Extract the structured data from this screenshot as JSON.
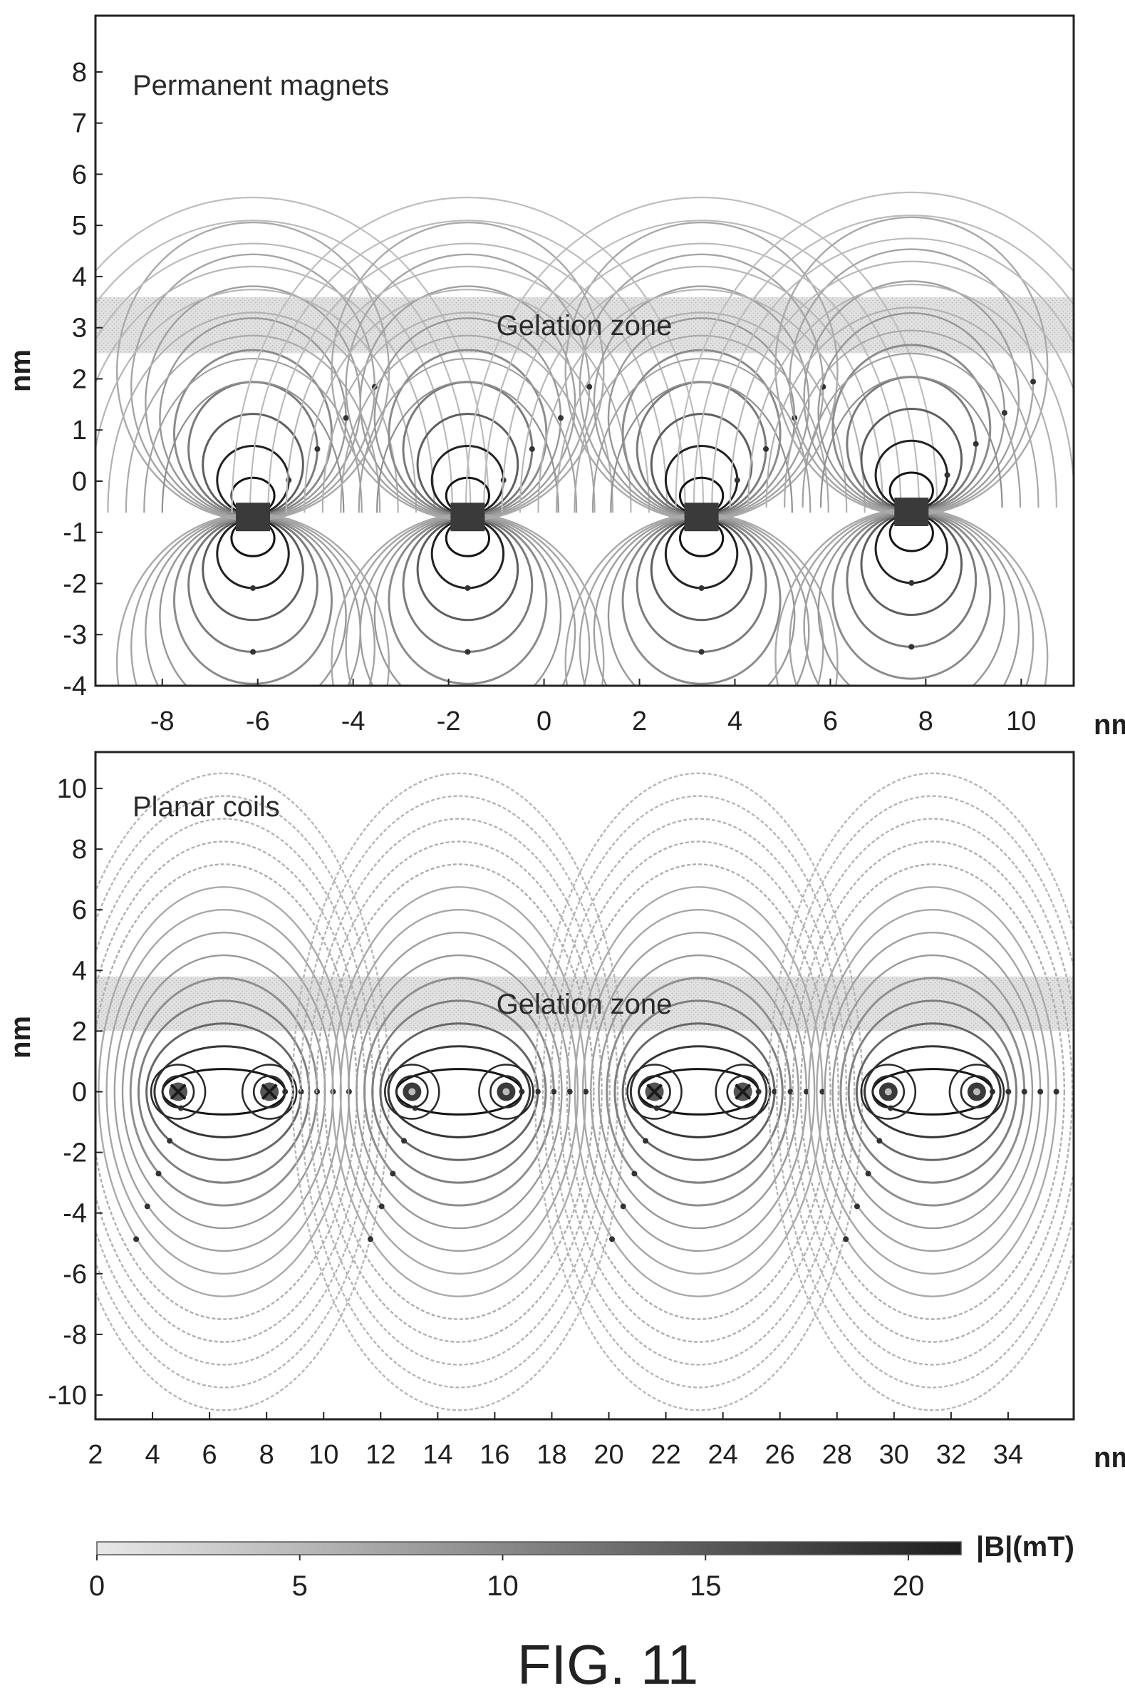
{
  "caption": "FIG. 11",
  "colorbar": {
    "label": "|B|(mT)",
    "ticks": [
      "0",
      "5",
      "10",
      "15",
      "20"
    ],
    "range": [
      0,
      21.3
    ],
    "gradient": [
      "#e8e8e8",
      "#1e1e1e"
    ]
  },
  "panels": [
    {
      "id": "top",
      "title": "Permanent magnets",
      "zone_label": "Gelation zone",
      "x_unit": "nm",
      "y_unit": "nm",
      "x_ticks": [
        "-8",
        "-6",
        "-4",
        "-2",
        "0",
        "2",
        "4",
        "6",
        "8",
        "10"
      ],
      "y_ticks": [
        "8",
        "7",
        "6",
        "5",
        "4",
        "3",
        "2",
        "1",
        "0",
        "-1",
        "-2",
        "-3",
        "-4"
      ],
      "xlim": [
        -9.4,
        11.1
      ],
      "ylim": [
        -4,
        9.1
      ],
      "zone_y": [
        2.5,
        3.6
      ],
      "sources": [
        {
          "x": -6.1,
          "y": -0.7,
          "kind": "magnet"
        },
        {
          "x": -1.6,
          "y": -0.7,
          "kind": "magnet"
        },
        {
          "x": 3.3,
          "y": -0.7,
          "kind": "magnet"
        },
        {
          "x": 7.7,
          "y": -0.6,
          "kind": "magnet"
        }
      ]
    },
    {
      "id": "bottom",
      "title": "Planar coils",
      "zone_label": "Gelation zone",
      "x_unit": "nm",
      "y_unit": "nm",
      "x_ticks": [
        "2",
        "4",
        "6",
        "8",
        "10",
        "12",
        "14",
        "16",
        "18",
        "20",
        "22",
        "24",
        "26",
        "28",
        "30",
        "32",
        "34"
      ],
      "y_ticks": [
        "10",
        "8",
        "6",
        "4",
        "2",
        "0",
        "-2",
        "-4",
        "-6",
        "-8",
        "-10"
      ],
      "xlim": [
        2,
        36.3
      ],
      "ylim": [
        -10.8,
        11.2
      ],
      "zone_y": [
        2,
        3.8
      ],
      "sources": [
        {
          "x": 4.9,
          "y": 0,
          "kind": "cross"
        },
        {
          "x": 8.1,
          "y": 0,
          "kind": "cross"
        },
        {
          "x": 13.1,
          "y": 0,
          "kind": "dot"
        },
        {
          "x": 16.4,
          "y": 0,
          "kind": "dot"
        },
        {
          "x": 21.6,
          "y": 0,
          "kind": "cross"
        },
        {
          "x": 24.7,
          "y": 0,
          "kind": "cross"
        },
        {
          "x": 29.8,
          "y": 0,
          "kind": "dot"
        },
        {
          "x": 32.9,
          "y": 0,
          "kind": "dot"
        }
      ]
    }
  ]
}
